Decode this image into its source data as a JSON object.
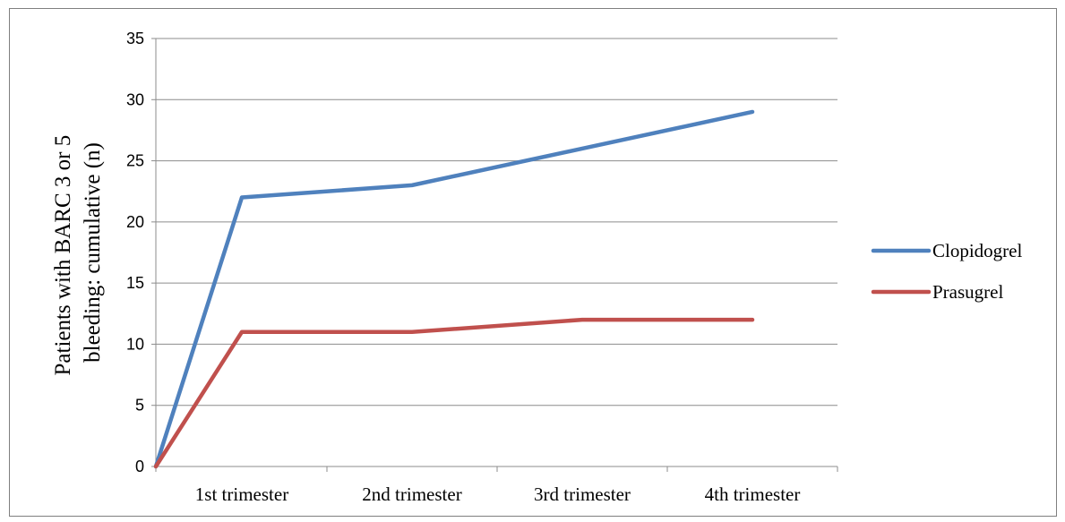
{
  "chart_data": {
    "type": "line",
    "categories": [
      "",
      "1st trimester",
      "2nd trimester",
      "3rd trimester",
      "4th trimester"
    ],
    "series": [
      {
        "name": "Clopidogrel",
        "values": [
          0,
          22,
          23,
          26,
          29
        ],
        "color": "#4F81BD"
      },
      {
        "name": "Prasugrel",
        "values": [
          0,
          11,
          11,
          12,
          12
        ],
        "color": "#C0504D"
      }
    ],
    "title": "",
    "xlabel": "",
    "ylabel_lines": [
      "Patients with BARC 3 or 5",
      "bleeding: cumulative (n)"
    ],
    "ylim": [
      0,
      35
    ],
    "yticks": [
      0,
      5,
      10,
      15,
      20,
      25,
      30,
      35
    ],
    "grid": "horizontal",
    "legend_position": "right"
  }
}
